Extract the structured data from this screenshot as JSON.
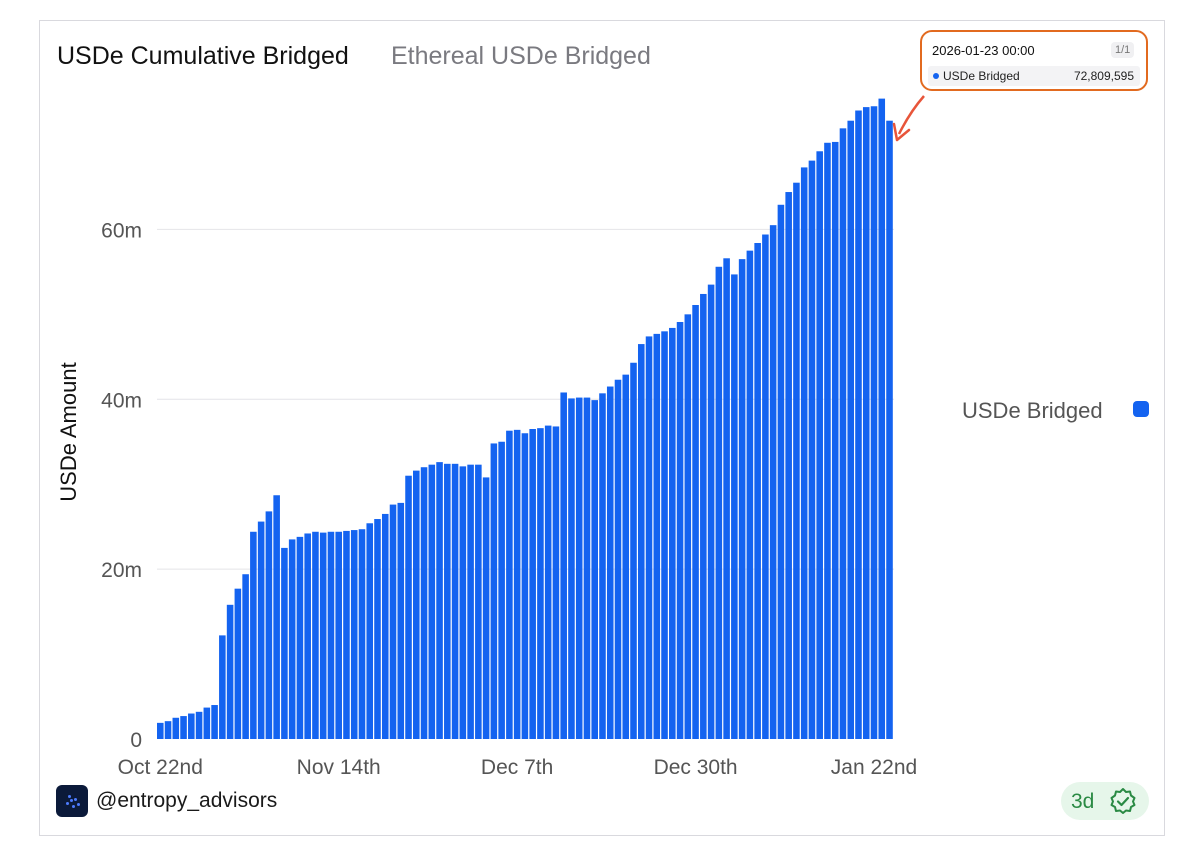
{
  "header": {
    "title": "USDe Cumulative Bridged",
    "subtitle": "Ethereal USDe Bridged"
  },
  "legend": {
    "label": "USDe Bridged"
  },
  "tooltip": {
    "date": "2026-01-23 00:00",
    "page": "1/1",
    "series_name": "USDe Bridged",
    "value": "72,809,595"
  },
  "footer": {
    "handle": "@entropy_advisors",
    "badge_label": "3d",
    "badge_icon": "check-badge-icon",
    "logo_icon": "entropy-logo-icon"
  },
  "colors": {
    "bar": "#1463f0",
    "tooltip_border": "#e26a1f",
    "arrow": "#e8553a",
    "badge_green": "#2a8a44"
  },
  "chart_data": {
    "type": "bar",
    "title": "USDe Cumulative Bridged",
    "subtitle": "Ethereal USDe Bridged",
    "ylabel": "USDe Amount",
    "xlabel": "",
    "ylim": [
      0,
      73000000
    ],
    "yticks": [
      0,
      20000000,
      40000000,
      60000000
    ],
    "ytick_labels": [
      "0",
      "20m",
      "40m",
      "60m"
    ],
    "xtick_labels": [
      "Oct 22nd",
      "Nov 14th",
      "Dec 7th",
      "Dec 30th",
      "Jan 22nd"
    ],
    "xtick_bar_index": [
      0,
      23,
      46,
      69,
      92
    ],
    "legend_position": "right",
    "grid": true,
    "series": [
      {
        "name": "USDe Bridged",
        "values": [
          1.9,
          2.1,
          2.5,
          2.7,
          3.0,
          3.2,
          3.7,
          4.0,
          12.2,
          15.8,
          17.7,
          19.4,
          24.4,
          25.6,
          26.8,
          28.7,
          22.5,
          23.5,
          23.8,
          24.2,
          24.4,
          24.3,
          24.4,
          24.4,
          24.5,
          24.6,
          24.7,
          25.4,
          25.9,
          26.5,
          27.6,
          27.8,
          31.0,
          31.6,
          32.0,
          32.3,
          32.6,
          32.4,
          32.4,
          32.1,
          32.3,
          32.3,
          30.8,
          34.8,
          35.0,
          36.3,
          36.4,
          36.0,
          36.5,
          36.6,
          36.9,
          36.8,
          40.8,
          40.1,
          40.2,
          40.2,
          39.9,
          40.7,
          41.5,
          42.3,
          42.9,
          44.3,
          46.5,
          47.4,
          47.7,
          48.0,
          48.4,
          49.1,
          50.0,
          51.1,
          52.4,
          53.5,
          55.6,
          56.6,
          54.7,
          56.5,
          57.5,
          58.4,
          59.4,
          60.5,
          62.9,
          64.4,
          65.5,
          67.3,
          68.1,
          69.2,
          70.2,
          70.3,
          71.9,
          72.8,
          74.0,
          74.4,
          74.5,
          75.4,
          72.8
        ]
      }
    ],
    "units": "millions",
    "last_point": {
      "date": "2026-01-23 00:00",
      "value": 72809595
    }
  }
}
